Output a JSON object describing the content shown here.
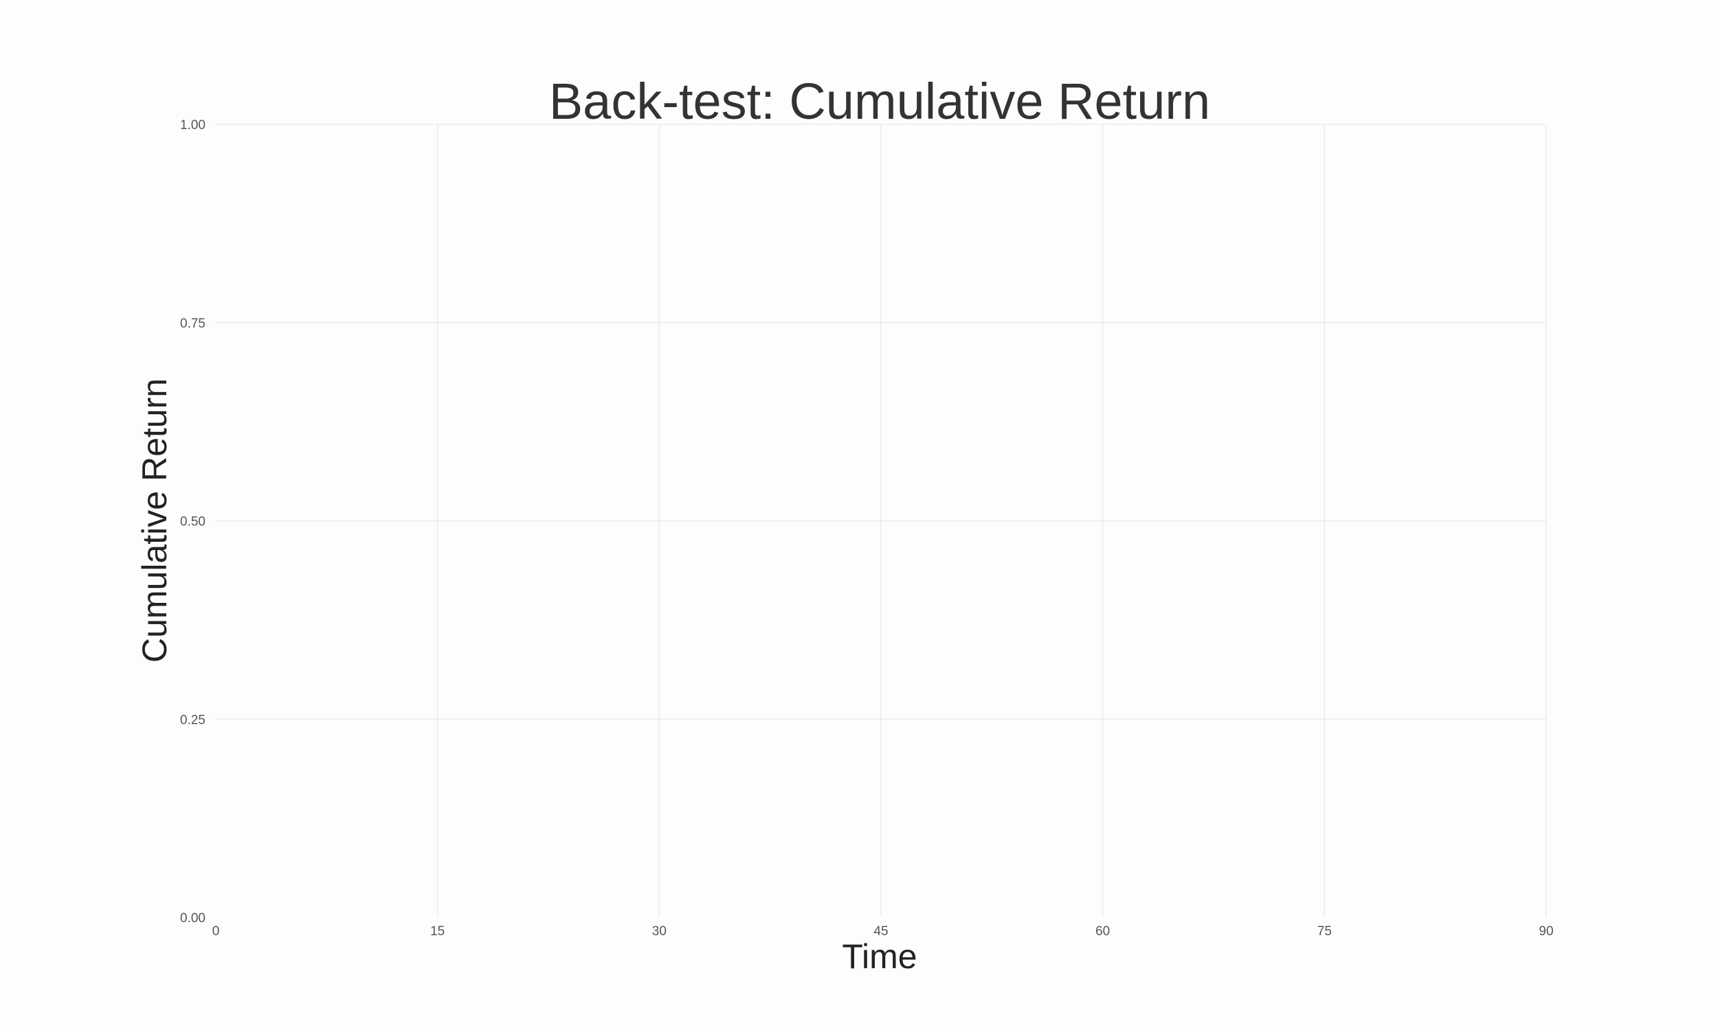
{
  "chart_data": {
    "type": "line",
    "title": "Back-test: Cumulative Return",
    "xlabel": "Time",
    "ylabel": "Cumulative Return",
    "xlim": [
      0,
      90
    ],
    "ylim": [
      0,
      1
    ],
    "x_ticks": [
      "0",
      "15",
      "30",
      "45",
      "60",
      "75",
      "90"
    ],
    "y_ticks": [
      "0.00",
      "0.25",
      "0.50",
      "0.75",
      "1.00"
    ],
    "grid": true,
    "series": []
  }
}
